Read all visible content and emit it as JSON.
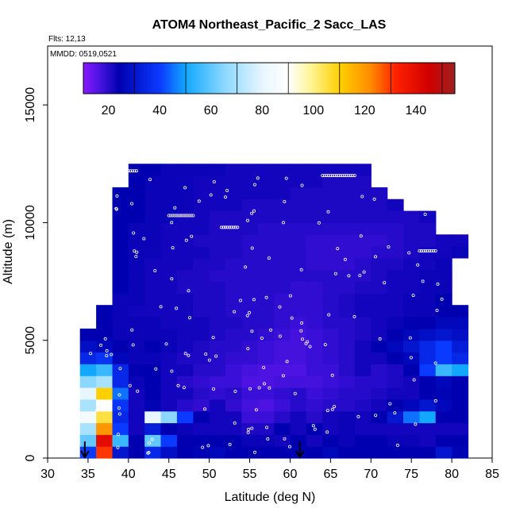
{
  "chart_data": {
    "type": "heatmap",
    "title": "ATOM4 Northeast_Pacific_2 Sacc_LAS",
    "flights_label": "Flts: 12,13",
    "dates_label": "MMDD: 0519,0521",
    "xlabel": "Latitude (deg N)",
    "ylabel": "Altitude (m)",
    "xlim": [
      30,
      85
    ],
    "ylim": [
      0,
      17500
    ],
    "x_ticks": [
      "30",
      "35",
      "40",
      "45",
      "50",
      "55",
      "60",
      "65",
      "70",
      "75",
      "80",
      "85"
    ],
    "y_ticks": [
      "0",
      "5000",
      "10000",
      "15000"
    ],
    "colorbar": {
      "range": [
        0,
        145
      ],
      "ticks": [
        "20",
        "40",
        "60",
        "80",
        "100",
        "120",
        "140"
      ],
      "tick_values": [
        20,
        40,
        60,
        80,
        100,
        120,
        140
      ],
      "stops": [
        {
          "v": 0,
          "color": "#8a1aff"
        },
        {
          "v": 8,
          "color": "#3a10d8"
        },
        {
          "v": 14,
          "color": "#0000b0"
        },
        {
          "v": 30,
          "color": "#0a3aff"
        },
        {
          "v": 40,
          "color": "#12a8ff"
        },
        {
          "v": 55,
          "color": "#8ad8ff"
        },
        {
          "v": 70,
          "color": "#e8f6ff"
        },
        {
          "v": 80,
          "color": "#ffffff"
        },
        {
          "v": 88,
          "color": "#fff6a0"
        },
        {
          "v": 100,
          "color": "#ffd000"
        },
        {
          "v": 112,
          "color": "#ff8c00"
        },
        {
          "v": 122,
          "color": "#ff2000"
        },
        {
          "v": 135,
          "color": "#d00000"
        },
        {
          "v": 145,
          "color": "#a02020"
        }
      ]
    },
    "profile_markers_latitude": [
      34.6,
      61.2
    ],
    "heatmap_grid": {
      "latitude_edges": [
        34,
        36,
        38,
        40,
        42,
        44,
        46,
        48,
        50,
        52,
        54,
        56,
        58,
        60,
        62,
        64,
        66,
        68,
        70,
        72,
        74,
        76,
        78,
        80,
        82
      ],
      "altitude_centers": [
        250,
        750,
        1250,
        1750,
        2250,
        2750,
        3250,
        3750,
        4250,
        4750,
        5250,
        5750,
        6250,
        6750,
        7250,
        7750,
        8250,
        8750,
        9250,
        9750,
        10250,
        10750,
        11250,
        11750,
        12250
      ],
      "bins_m": 500,
      "values": [
        [
          30,
          120,
          20,
          14,
          25,
          18,
          14,
          15,
          16,
          14,
          14,
          14,
          14,
          15,
          14,
          16,
          14,
          14,
          14,
          14,
          14,
          14,
          20,
          15
        ],
        [
          50,
          130,
          45,
          14,
          50,
          30,
          14,
          14,
          14,
          14,
          13,
          13,
          12,
          14,
          12,
          14,
          13,
          14,
          14,
          13,
          13,
          12,
          14,
          14
        ],
        [
          60,
          110,
          30,
          12,
          22,
          14,
          13,
          12,
          12,
          12,
          11,
          11,
          14,
          12,
          14,
          12,
          13,
          12,
          12,
          12,
          12,
          12,
          12,
          12
        ],
        [
          75,
          95,
          25,
          12,
          70,
          55,
          30,
          14,
          12,
          12,
          8,
          8,
          10,
          12,
          10,
          12,
          13,
          12,
          14,
          20,
          35,
          40,
          14,
          14
        ],
        [
          60,
          80,
          28,
          12,
          15,
          12,
          10,
          9,
          12,
          9,
          7,
          6,
          8,
          10,
          9,
          10,
          10,
          11,
          12,
          14,
          16,
          20,
          16,
          14
        ],
        [
          70,
          100,
          35,
          12,
          14,
          12,
          12,
          10,
          9,
          10,
          8,
          8,
          9,
          10,
          8,
          9,
          10,
          10,
          11,
          12,
          12,
          14,
          15,
          14
        ],
        [
          55,
          60,
          25,
          13,
          14,
          12,
          10,
          9,
          8,
          8,
          6,
          6,
          7,
          7,
          7,
          8,
          9,
          10,
          10,
          11,
          12,
          14,
          16,
          14
        ],
        [
          40,
          45,
          25,
          14,
          14,
          12,
          12,
          10,
          10,
          8,
          7,
          6,
          6,
          6,
          8,
          8,
          10,
          12,
          10,
          11,
          14,
          30,
          45,
          40
        ],
        [
          25,
          28,
          16,
          13,
          13,
          12,
          11,
          11,
          10,
          9,
          9,
          8,
          7,
          7,
          8,
          9,
          10,
          12,
          12,
          14,
          16,
          25,
          30,
          25
        ],
        [
          18,
          16,
          14,
          13,
          14,
          13,
          12,
          11,
          10,
          10,
          9,
          8,
          7,
          7,
          8,
          9,
          10,
          12,
          14,
          16,
          20,
          25,
          30,
          22
        ],
        [
          14,
          14,
          13,
          13,
          13,
          13,
          12,
          12,
          11,
          10,
          10,
          9,
          8,
          7,
          8,
          9,
          10,
          11,
          12,
          14,
          16,
          18,
          20,
          18
        ],
        [
          0,
          14,
          13,
          13,
          13,
          12,
          12,
          12,
          11,
          11,
          10,
          10,
          9,
          8,
          9,
          10,
          10,
          11,
          12,
          13,
          14,
          14,
          16,
          16
        ],
        [
          0,
          14,
          13,
          12,
          12,
          12,
          12,
          11,
          11,
          10,
          10,
          10,
          9,
          9,
          9,
          10,
          11,
          12,
          12,
          12,
          13,
          13,
          14,
          14
        ],
        [
          0,
          0,
          13,
          13,
          12,
          12,
          12,
          11,
          11,
          10,
          10,
          10,
          9,
          9,
          9,
          10,
          11,
          12,
          12,
          12,
          13,
          13,
          14,
          0
        ],
        [
          0,
          0,
          14,
          13,
          12,
          12,
          11,
          11,
          11,
          10,
          10,
          10,
          10,
          9,
          9,
          10,
          10,
          11,
          11,
          12,
          12,
          13,
          13,
          0
        ],
        [
          0,
          0,
          14,
          13,
          12,
          12,
          11,
          11,
          10,
          10,
          10,
          10,
          10,
          10,
          10,
          10,
          10,
          10,
          11,
          12,
          12,
          13,
          13,
          0
        ],
        [
          0,
          0,
          14,
          13,
          12,
          12,
          12,
          11,
          11,
          10,
          10,
          10,
          10,
          10,
          9,
          9,
          9,
          10,
          11,
          11,
          12,
          12,
          13,
          0
        ],
        [
          0,
          0,
          14,
          13,
          13,
          12,
          12,
          12,
          11,
          11,
          10,
          10,
          10,
          10,
          9,
          9,
          9,
          9,
          10,
          10,
          11,
          12,
          12,
          13
        ],
        [
          0,
          0,
          14,
          13,
          13,
          12,
          12,
          11,
          11,
          11,
          10,
          10,
          10,
          10,
          9,
          9,
          9,
          9,
          9,
          10,
          11,
          11,
          12,
          12
        ],
        [
          0,
          0,
          14,
          13,
          13,
          12,
          12,
          12,
          11,
          11,
          11,
          10,
          10,
          10,
          10,
          10,
          10,
          10,
          10,
          10,
          11,
          11,
          0,
          0
        ],
        [
          0,
          0,
          14,
          14,
          13,
          13,
          12,
          12,
          11,
          11,
          11,
          11,
          11,
          11,
          11,
          11,
          11,
          11,
          11,
          11,
          11,
          12,
          0,
          0
        ],
        [
          0,
          0,
          14,
          14,
          13,
          13,
          13,
          12,
          12,
          12,
          11,
          11,
          11,
          11,
          11,
          11,
          11,
          11,
          11,
          12,
          0,
          0,
          0,
          0
        ],
        [
          0,
          0,
          14,
          14,
          13,
          13,
          13,
          12,
          12,
          12,
          12,
          12,
          12,
          11,
          11,
          11,
          11,
          11,
          11,
          0,
          0,
          0,
          0,
          0
        ],
        [
          0,
          0,
          0,
          14,
          13,
          13,
          13,
          12,
          12,
          12,
          12,
          12,
          12,
          12,
          12,
          11,
          11,
          11,
          0,
          0,
          0,
          0,
          0,
          0
        ],
        [
          0,
          0,
          0,
          14,
          14,
          13,
          13,
          13,
          13,
          12,
          12,
          12,
          12,
          12,
          12,
          12,
          12,
          12,
          0,
          0,
          0,
          0,
          0,
          0
        ]
      ]
    }
  }
}
